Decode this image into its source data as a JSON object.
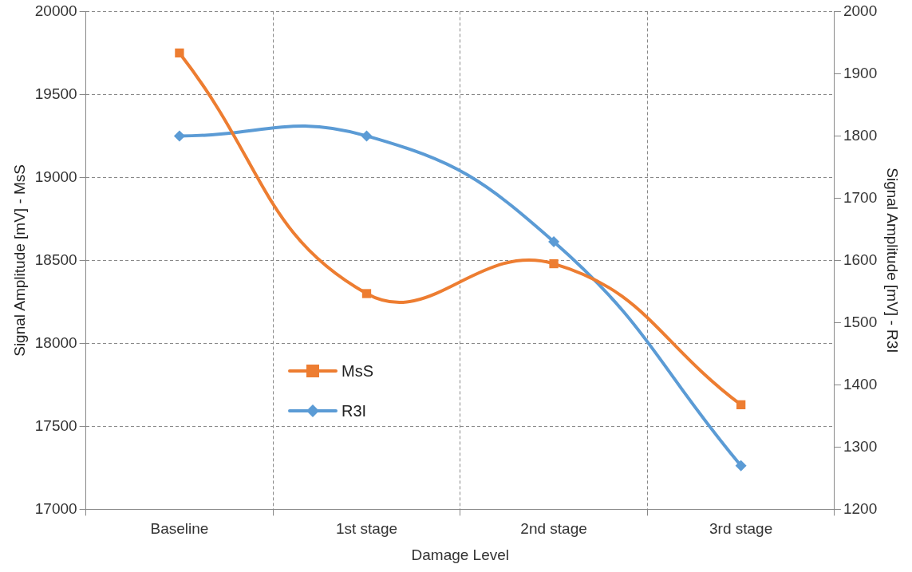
{
  "chart_data": {
    "type": "line",
    "xlabel": "Damage Level",
    "ylabel": "Signal Amplitude [mV] - MsS",
    "y2label": "Signal Amplitude [mV] - R3I",
    "categories": [
      "Baseline",
      "1st stage",
      "2nd stage",
      "3rd stage"
    ],
    "series": [
      {
        "name": "MsS",
        "color": "#ed7d31",
        "marker": "square",
        "values": [
          19750,
          18300,
          18480,
          17630
        ]
      },
      {
        "name": "R3I",
        "color": "#5b9bd5",
        "marker": "diamond",
        "axis": "y2",
        "values": [
          1800,
          1800,
          1630,
          1270
        ]
      }
    ],
    "ylim": [
      17000,
      20000
    ],
    "yticks": [
      17000,
      17500,
      18000,
      18500,
      19000,
      19500,
      20000
    ],
    "y2lim": [
      1200,
      2000
    ],
    "y2ticks": [
      1200,
      1300,
      1400,
      1500,
      1600,
      1700,
      1800,
      1900,
      2000
    ],
    "grid": true,
    "legend": "left",
    "line_style": "solid"
  }
}
